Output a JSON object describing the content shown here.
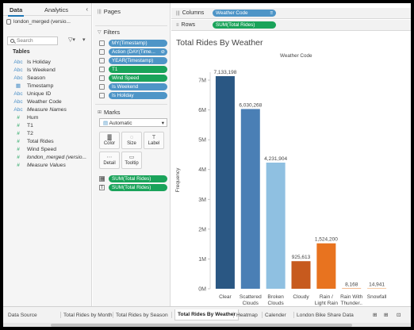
{
  "data_pane": {
    "tab_data": "Data",
    "tab_analytics": "Analytics",
    "collapse_glyph": "‹",
    "datasource": "london_merged (versio...",
    "search_placeholder": "Search",
    "filter_glyph": "▽▾",
    "menu_glyph": "▾",
    "tables_label": "Tables",
    "fields": [
      {
        "label": "Is Holiday",
        "icon": "Abc",
        "kind": "dimension"
      },
      {
        "label": "Is Weekend",
        "icon": "Abc",
        "kind": "dimension"
      },
      {
        "label": "Season",
        "icon": "Abc",
        "kind": "dimension"
      },
      {
        "label": "Timestamp",
        "icon": "▦",
        "kind": "dimension"
      },
      {
        "label": "Unique ID",
        "icon": "Abc",
        "kind": "dimension"
      },
      {
        "label": "Weather Code",
        "icon": "Abc",
        "kind": "dimension"
      },
      {
        "label": "Measure Names",
        "icon": "Abc",
        "kind": "dimension",
        "italic": true
      },
      {
        "label": "Hum",
        "icon": "#",
        "kind": "measure"
      },
      {
        "label": "T1",
        "icon": "#",
        "kind": "measure"
      },
      {
        "label": "T2",
        "icon": "#",
        "kind": "measure"
      },
      {
        "label": "Total Rides",
        "icon": "#",
        "kind": "measure"
      },
      {
        "label": "Wind Speed",
        "icon": "#",
        "kind": "measure"
      },
      {
        "label": "london_merged (versio...",
        "icon": "#",
        "kind": "measure",
        "italic": true
      },
      {
        "label": "Measure Values",
        "icon": "#",
        "kind": "measure",
        "italic": true
      }
    ]
  },
  "shelves": {
    "pages_title": "Pages",
    "filters_title": "Filters",
    "filters": [
      {
        "label": "MY(Timestamp)",
        "color": "blue"
      },
      {
        "label": "Action (DAY(Time...",
        "color": "blue",
        "suffix": "⊘"
      },
      {
        "label": "YEAR(Timestamp)",
        "color": "blue"
      },
      {
        "label": "T1",
        "color": "green"
      },
      {
        "label": "Wind Speed",
        "color": "green"
      },
      {
        "label": "Is Weekend",
        "color": "blue"
      },
      {
        "label": "Is Holiday",
        "color": "blue"
      }
    ],
    "marks_title": "Marks",
    "marks_type": "Automatic",
    "mark_buttons": [
      {
        "label": "Color",
        "glyph": "▓"
      },
      {
        "label": "Size",
        "glyph": "◌"
      },
      {
        "label": "Label",
        "glyph": "T"
      },
      {
        "label": "Detail",
        "glyph": "⋯"
      },
      {
        "label": "Tooltip",
        "glyph": "▭"
      }
    ],
    "mark_pills": [
      {
        "label": "SUM(Total Rides)",
        "icon": "▦"
      },
      {
        "label": "SUM(Total Rides)",
        "icon": "T"
      }
    ]
  },
  "columns_shelf": {
    "label": "Columns",
    "glyph": "|||",
    "pill": "Weather Code",
    "pill_suffix": "≡"
  },
  "rows_shelf": {
    "label": "Rows",
    "glyph": "≡",
    "pill": "SUM(Total Rides)"
  },
  "chart_data": {
    "type": "bar",
    "title": "Total Rides By Weather",
    "legend_caption": "Weather Code",
    "ylabel": "Frequency",
    "ylim": [
      0,
      7500000
    ],
    "yticks": [
      0,
      1000000,
      2000000,
      3000000,
      4000000,
      5000000,
      6000000,
      7000000
    ],
    "ytick_labels": [
      "0M",
      "1M",
      "2M",
      "3M",
      "4M",
      "5M",
      "6M",
      "7M"
    ],
    "categories": [
      [
        "Clear"
      ],
      [
        "Scattered",
        "Clouds"
      ],
      [
        "Broken",
        "Clouds"
      ],
      [
        "Cloudy"
      ],
      [
        "Rain /",
        "Light Rain"
      ],
      [
        "Rain With",
        "Thunder.."
      ],
      [
        "Snowfall"
      ]
    ],
    "values": [
      7133198,
      6030268,
      4231904,
      925613,
      1524200,
      8168,
      14941
    ],
    "value_labels": [
      "7,133,198",
      "6,030,268",
      "4,231,904",
      "925,613",
      "1,524,200",
      "8,168",
      "14,941"
    ],
    "colors": [
      "#2a5783",
      "#4a7fb5",
      "#8fc0e1",
      "#c75a1e",
      "#e8731f",
      "#e8731f",
      "#f0a15e"
    ]
  },
  "sheet_tabs": [
    {
      "label": "Data Source",
      "icon": "▤"
    },
    {
      "label": "Total Rides by Month"
    },
    {
      "label": "Total Rides by Season"
    },
    {
      "label": "Total Rides By Weather",
      "active": true
    },
    {
      "label": "Heatmap"
    },
    {
      "label": "Calender"
    },
    {
      "label": "London Bike Share Data",
      "icon": "▦"
    },
    {
      "label": "⊞"
    },
    {
      "label": "⊞"
    },
    {
      "label": "⊡"
    }
  ]
}
